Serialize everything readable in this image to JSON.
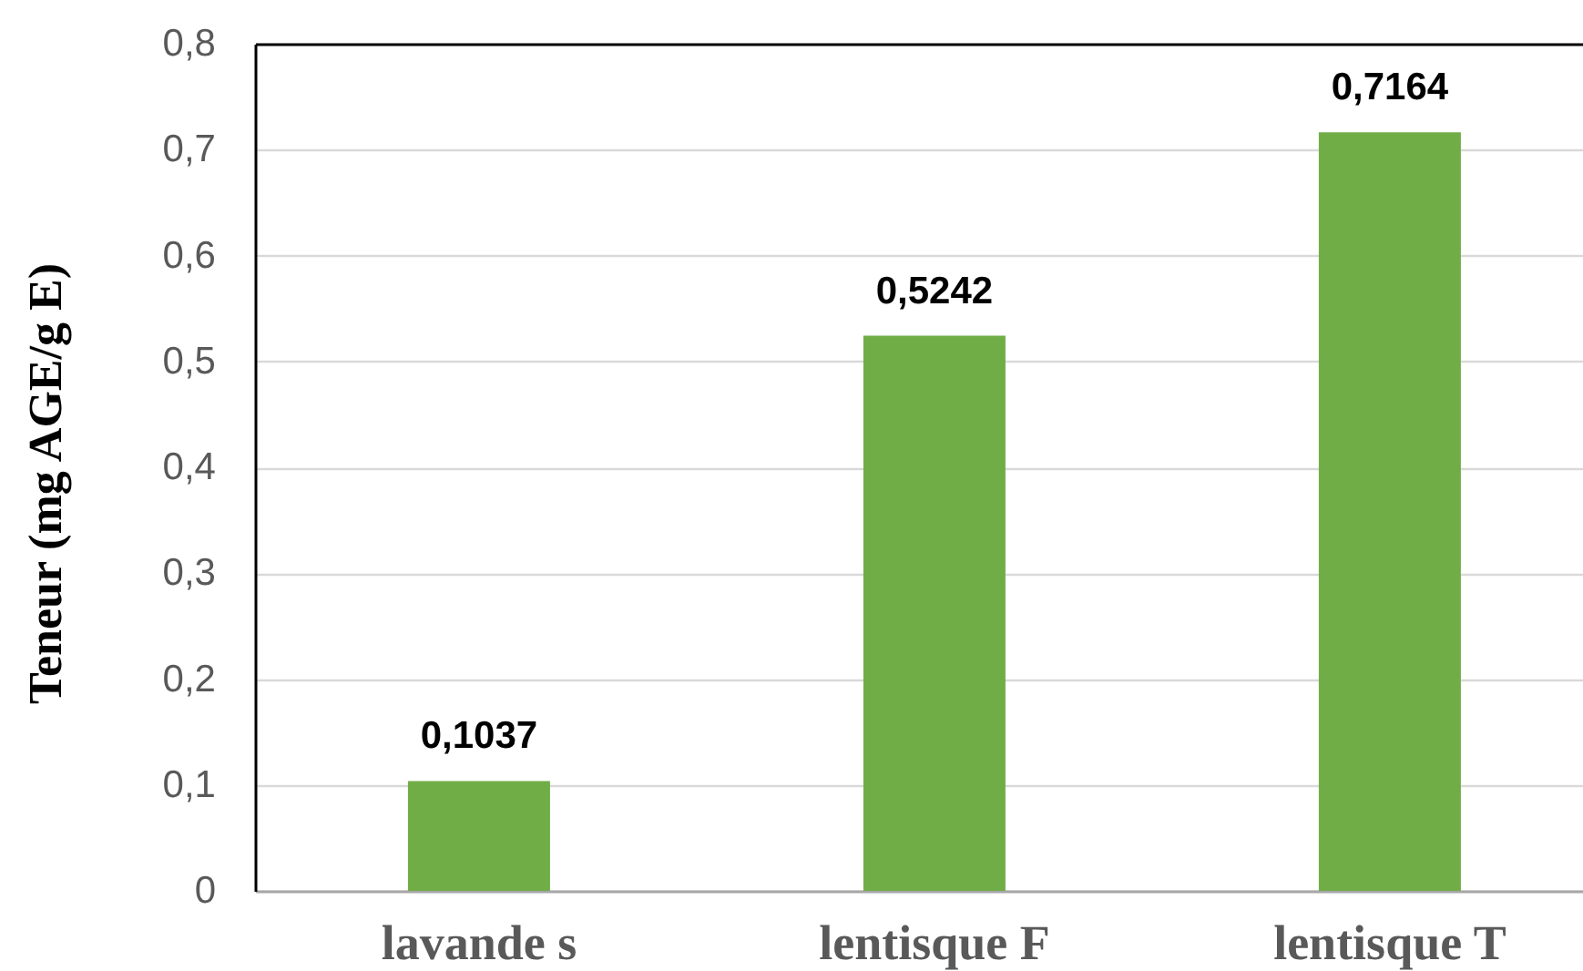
{
  "chart_data": {
    "type": "bar",
    "ylabel": "Teneur (mg AGE/g E)",
    "categories": [
      "lavande s",
      "lentisque F",
      "lentisque T"
    ],
    "values": [
      0.1037,
      0.5242,
      0.7164
    ],
    "color": "#70ad47",
    "value_labels": [
      "0,1037",
      "0,5242",
      "0,7164"
    ],
    "ylim": [
      0,
      0.8
    ],
    "yticks": [
      0,
      {
        "value": 0.1,
        "label": "0,1"
      },
      {
        "value": 0.2,
        "label": "0,2"
      },
      {
        "value": 0.3,
        "label": "0,3"
      },
      {
        "value": 0.4,
        "label": "0,4"
      },
      {
        "value": 0.5,
        "label": "0,5"
      },
      {
        "value": 0.6,
        "label": "0,6"
      },
      {
        "value": 0.7,
        "label": "0,7"
      },
      {
        "value": 0.8,
        "label": "0,8"
      }
    ],
    "grid": "y"
  }
}
